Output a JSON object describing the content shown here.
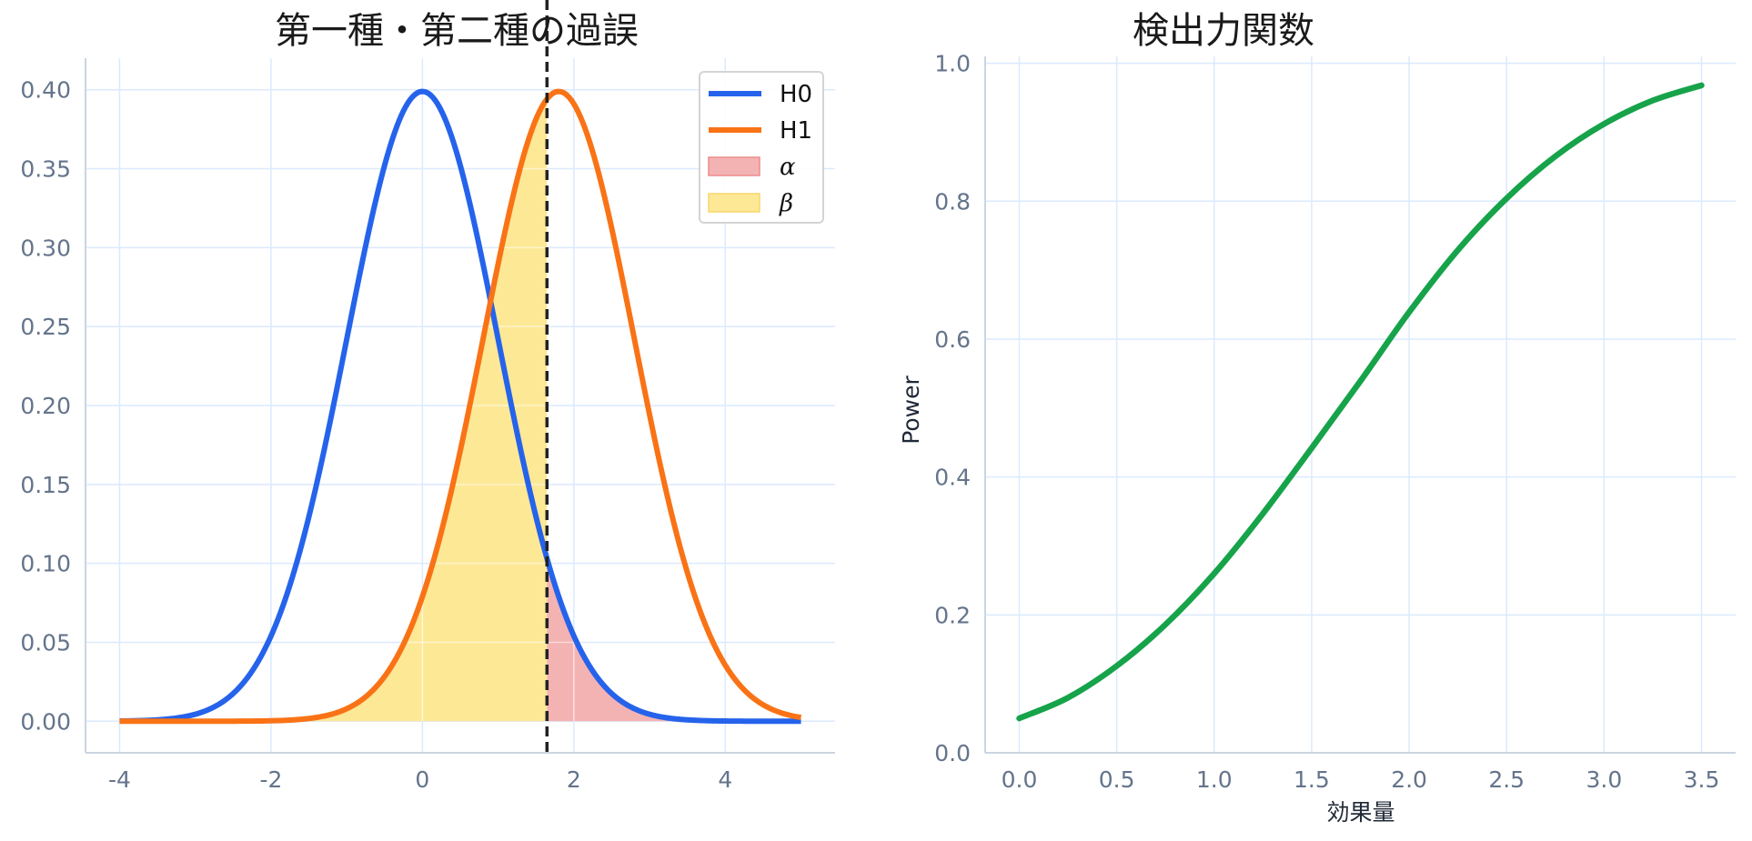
{
  "colors": {
    "h0": "#2563eb",
    "h1": "#f97316",
    "alpha": "#f4b3b3",
    "beta": "#fde896",
    "power": "#16a34a",
    "grid": "#dbeafe",
    "spine": "#cbd5e1",
    "critical": "#222222"
  },
  "chart_data": [
    {
      "type": "line",
      "title": "第一種・第二種の過誤",
      "xlabel": "",
      "ylabel": "",
      "xlim": [
        -4.45,
        5.45
      ],
      "ylim": [
        -0.02,
        0.42
      ],
      "x_ticks": [
        -4,
        -2,
        0,
        2,
        4
      ],
      "x_tick_labels": [
        "-4",
        "-2",
        "0",
        "2",
        "4"
      ],
      "y_ticks": [
        0.0,
        0.05,
        0.1,
        0.15,
        0.2,
        0.25,
        0.3,
        0.35,
        0.4
      ],
      "y_tick_labels": [
        "0.00",
        "0.05",
        "0.10",
        "0.15",
        "0.20",
        "0.25",
        "0.30",
        "0.35",
        "0.40"
      ],
      "grid": true,
      "critical_value": 1.645,
      "series": [
        {
          "name": "H0",
          "distribution": "normal",
          "mean": 0,
          "sd": 1,
          "x_range": [
            -4,
            5
          ]
        },
        {
          "name": "H1",
          "distribution": "normal",
          "mean": 1.8,
          "sd": 1,
          "x_range": [
            -4,
            5
          ]
        }
      ],
      "shaded_regions": [
        {
          "name": "α",
          "under": "H0",
          "x_range": [
            1.645,
            5
          ]
        },
        {
          "name": "β",
          "under": "H1",
          "x_range": [
            -4,
            1.645
          ]
        }
      ],
      "legend": {
        "position": "top-right",
        "entries": [
          {
            "label": "H0",
            "kind": "line",
            "color_key": "h0"
          },
          {
            "label": "H1",
            "kind": "line",
            "color_key": "h1"
          },
          {
            "label": "α",
            "kind": "patch",
            "color_key": "alpha"
          },
          {
            "label": "β",
            "kind": "patch",
            "color_key": "beta"
          }
        ]
      }
    },
    {
      "type": "line",
      "title": "検出力関数",
      "xlabel": "効果量",
      "ylabel": "Power",
      "xlim": [
        -0.175,
        3.675
      ],
      "ylim": [
        0.0,
        1.01
      ],
      "x_ticks": [
        0.0,
        0.5,
        1.0,
        1.5,
        2.0,
        2.5,
        3.0,
        3.5
      ],
      "x_tick_labels": [
        "0.0",
        "0.5",
        "1.0",
        "1.5",
        "2.0",
        "2.5",
        "3.0",
        "3.5"
      ],
      "y_ticks": [
        0.0,
        0.2,
        0.4,
        0.6,
        0.8,
        1.0
      ],
      "y_tick_labels": [
        "0.0",
        "0.2",
        "0.4",
        "0.6",
        "0.8",
        "1.0"
      ],
      "grid": true,
      "x": [
        0.0,
        0.25,
        0.5,
        0.75,
        1.0,
        1.25,
        1.5,
        1.75,
        2.0,
        2.25,
        2.5,
        2.75,
        3.0,
        3.25,
        3.5
      ],
      "y": [
        0.05,
        0.08,
        0.126,
        0.186,
        0.26,
        0.347,
        0.442,
        0.539,
        0.639,
        0.729,
        0.804,
        0.865,
        0.912,
        0.946,
        0.968
      ],
      "series": [
        {
          "color_key": "power"
        }
      ]
    }
  ]
}
